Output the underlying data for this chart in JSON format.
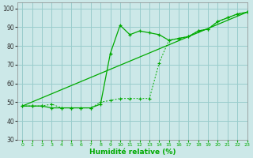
{
  "title": "",
  "xlabel": "Humidité relative (%)",
  "ylabel": "",
  "background_color": "#cce8e8",
  "grid_color": "#99cccc",
  "line_color": "#00aa00",
  "xlim": [
    -0.5,
    23
  ],
  "ylim": [
    30,
    103
  ],
  "xticks": [
    0,
    1,
    2,
    3,
    4,
    5,
    6,
    7,
    8,
    9,
    10,
    11,
    12,
    13,
    14,
    15,
    16,
    17,
    18,
    19,
    20,
    21,
    22,
    23
  ],
  "yticks": [
    30,
    40,
    50,
    60,
    70,
    80,
    90,
    100
  ],
  "series1_x": [
    0,
    1,
    2,
    3,
    4,
    5,
    6,
    7,
    8,
    9,
    10,
    11,
    12,
    13,
    14,
    15,
    16,
    17,
    18,
    19,
    20,
    21,
    22,
    23
  ],
  "series1_y": [
    48,
    48,
    48,
    49,
    47,
    47,
    47,
    47,
    50,
    51,
    52,
    52,
    52,
    52,
    71,
    83,
    84,
    85,
    88,
    89,
    93,
    95,
    97,
    98
  ],
  "series2_x": [
    0,
    1,
    2,
    3,
    4,
    5,
    6,
    7,
    8,
    9,
    10,
    11,
    12,
    13,
    14,
    15,
    16,
    17,
    18,
    19,
    20,
    21,
    22,
    23
  ],
  "series2_y": [
    48,
    48,
    48,
    47,
    47,
    47,
    47,
    47,
    49,
    76,
    91,
    86,
    88,
    87,
    86,
    83,
    84,
    85,
    88,
    89,
    93,
    95,
    97,
    98
  ],
  "series3_x": [
    0,
    23
  ],
  "series3_y": [
    48,
    98
  ]
}
